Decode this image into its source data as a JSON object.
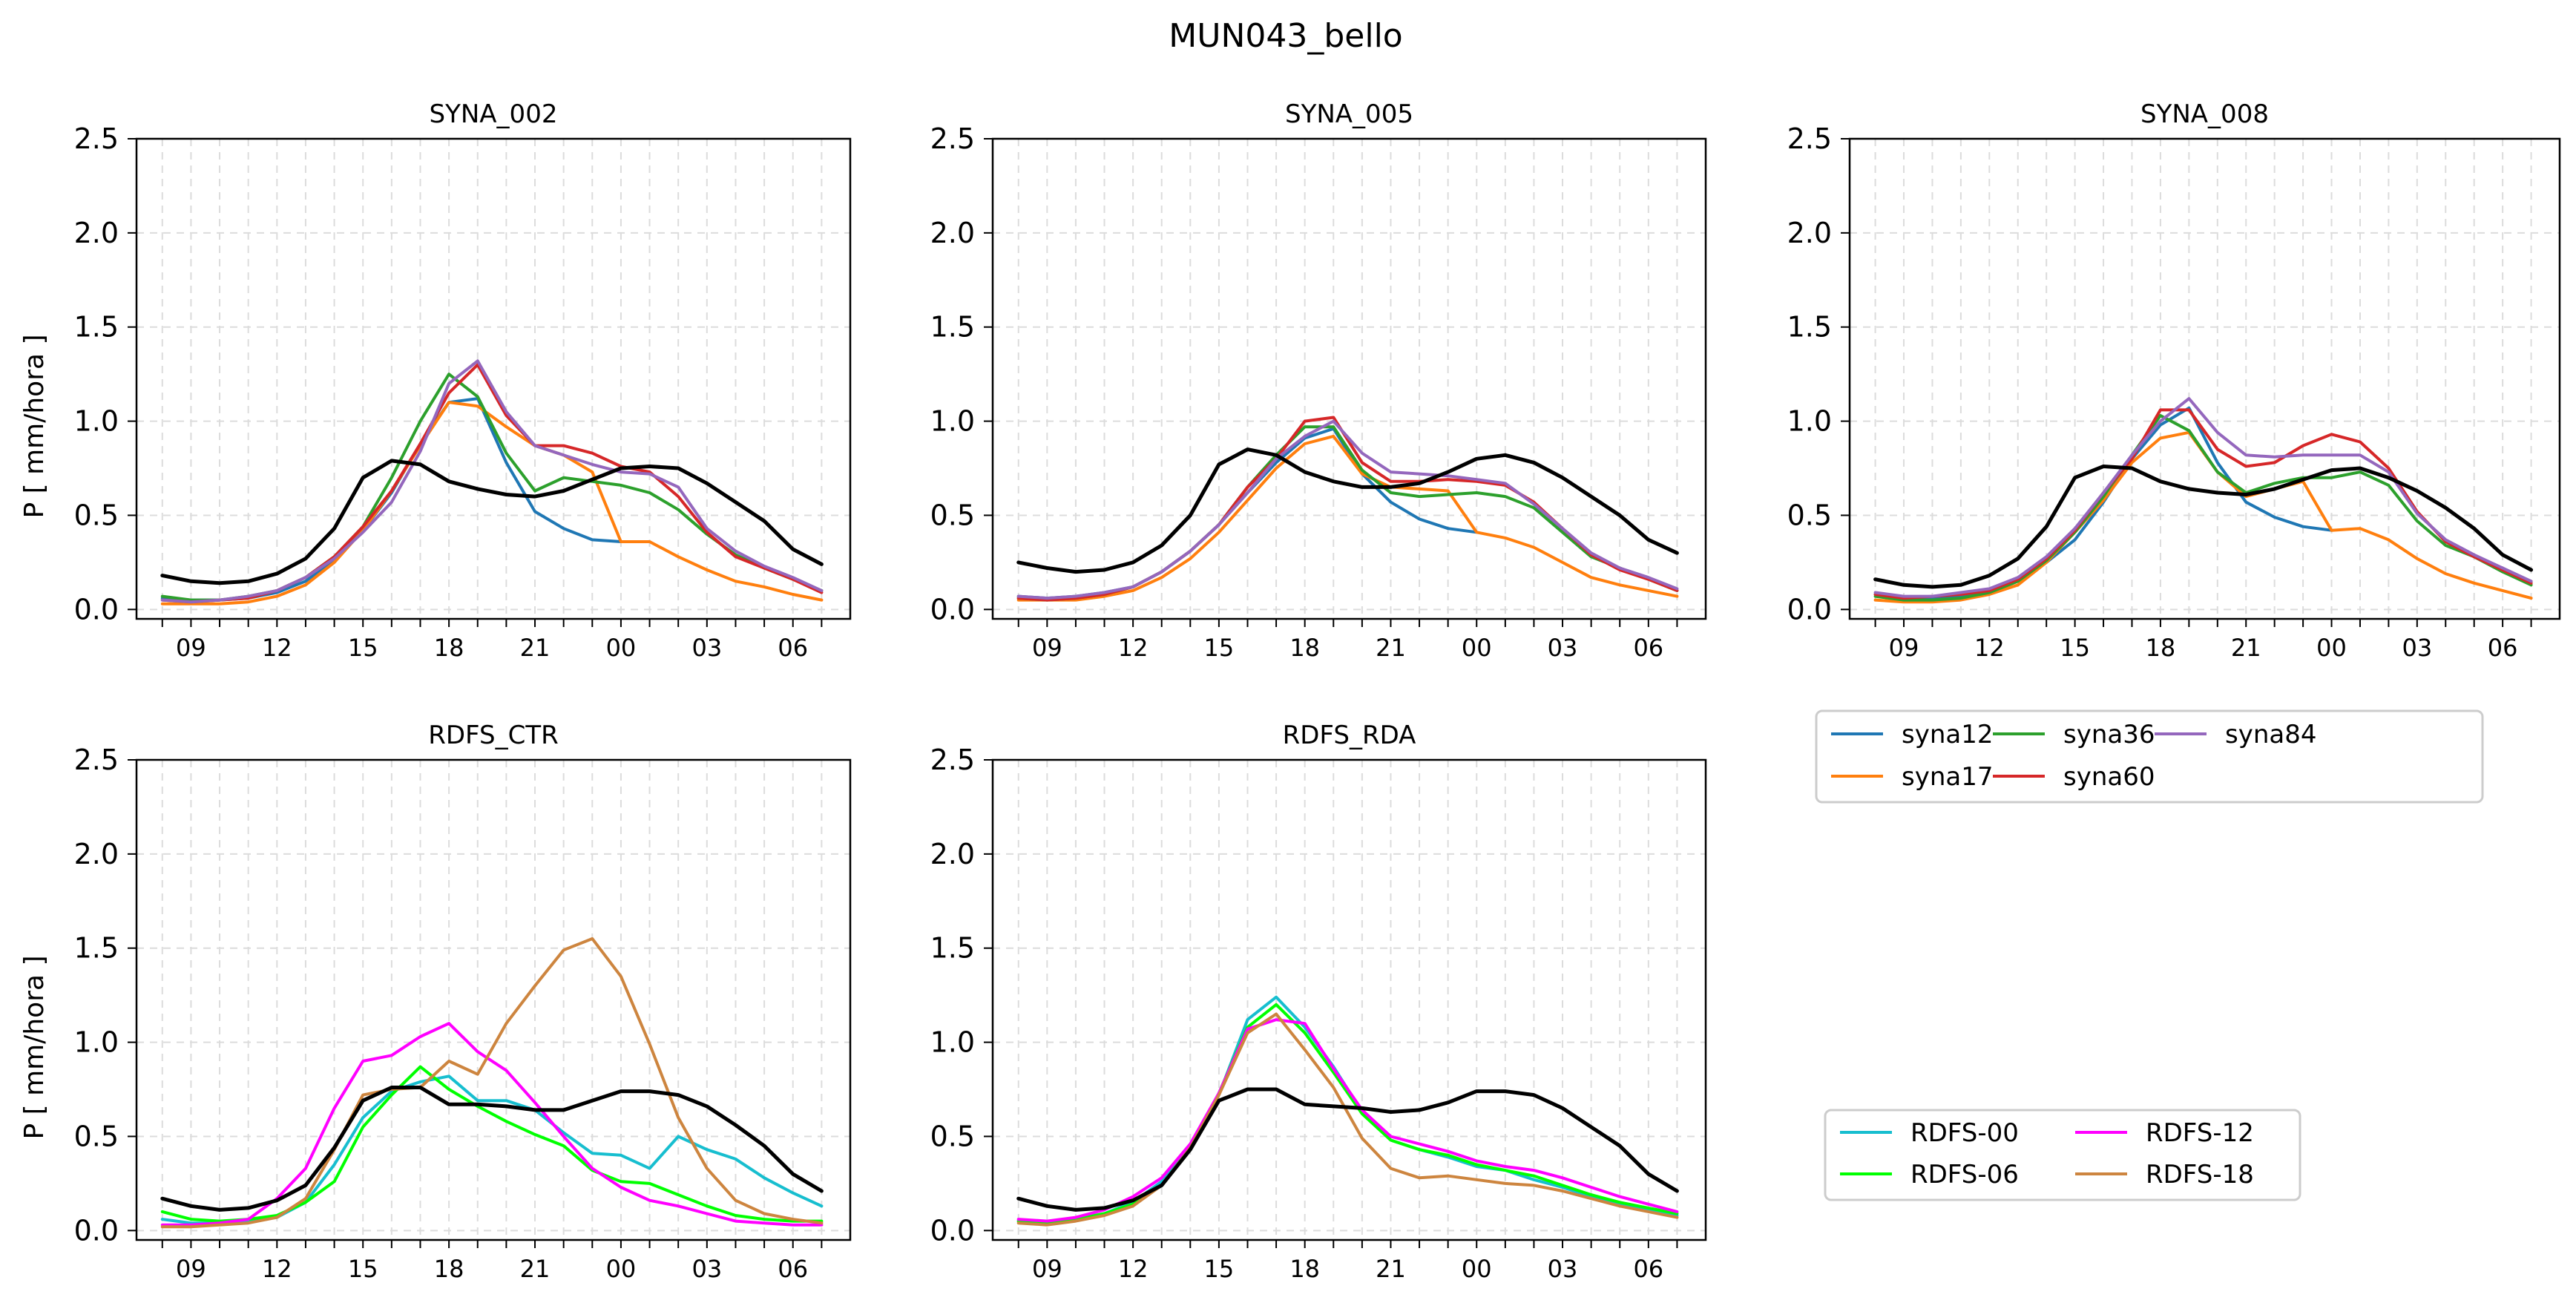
{
  "figure": {
    "title": "MUN043_bello"
  },
  "colors": {
    "observed": "#000000",
    "syna12": "#1f77b4",
    "syna17": "#ff7f0e",
    "syna36": "#2ca02c",
    "syna60": "#d62728",
    "syna84": "#9467bd",
    "RDFS-00": "#17becf",
    "RDFS-06": "#00ff00",
    "RDFS-12": "#ff00ff",
    "RDFS-18": "#cd853f"
  },
  "legends": {
    "syna": {
      "entries": [
        "syna12",
        "syna36",
        "syna84",
        "syna17",
        "syna60"
      ]
    },
    "rdfs": {
      "entries": [
        "RDFS-00",
        "RDFS-12",
        "RDFS-06",
        "RDFS-18"
      ]
    }
  },
  "chart_data": [
    {
      "type": "line",
      "title": "SYNA_002",
      "ylabel": "P [ mm/hora ]",
      "xlabel": "",
      "ylim": [
        -0.05,
        2.5
      ],
      "yticks": [
        "0.0",
        "0.5",
        "1.0",
        "1.5",
        "2.0",
        "2.5"
      ],
      "xticks": [
        "09",
        "12",
        "15",
        "18",
        "21",
        "00",
        "03",
        "06"
      ],
      "grid": true,
      "x": [
        8,
        9,
        10,
        11,
        12,
        13,
        14,
        15,
        16,
        17,
        18,
        19,
        20,
        21,
        22,
        23,
        24,
        25,
        26,
        27,
        28,
        29,
        30,
        31
      ],
      "series": [
        {
          "name": "syna12",
          "values": [
            0.06,
            0.05,
            0.05,
            0.06,
            0.09,
            0.15,
            0.26,
            0.42,
            0.62,
            0.88,
            1.1,
            1.12,
            0.78,
            0.52,
            0.43,
            0.37,
            0.36,
            null,
            null,
            null,
            null,
            null,
            null,
            null
          ]
        },
        {
          "name": "syna17",
          "values": [
            0.03,
            0.03,
            0.03,
            0.04,
            0.07,
            0.13,
            0.25,
            0.42,
            0.63,
            0.87,
            1.1,
            1.08,
            0.97,
            0.87,
            0.82,
            0.73,
            0.36,
            0.36,
            0.28,
            0.21,
            0.15,
            0.12,
            0.08,
            0.05
          ]
        },
        {
          "name": "syna36",
          "values": [
            0.07,
            0.05,
            0.05,
            0.07,
            0.1,
            0.17,
            0.28,
            0.44,
            0.7,
            1.0,
            1.25,
            1.13,
            0.83,
            0.63,
            0.7,
            0.68,
            0.66,
            0.62,
            0.53,
            0.4,
            0.29,
            0.22,
            0.16,
            0.1
          ]
        },
        {
          "name": "syna60",
          "values": [
            0.05,
            0.04,
            0.05,
            0.06,
            0.1,
            0.17,
            0.28,
            0.44,
            0.63,
            0.88,
            1.15,
            1.3,
            1.03,
            0.87,
            0.87,
            0.83,
            0.76,
            0.73,
            0.6,
            0.41,
            0.28,
            0.22,
            0.16,
            0.09
          ]
        },
        {
          "name": "syna84",
          "values": [
            0.05,
            0.04,
            0.05,
            0.07,
            0.1,
            0.17,
            0.27,
            0.41,
            0.57,
            0.84,
            1.2,
            1.32,
            1.05,
            0.87,
            0.82,
            0.77,
            0.73,
            0.72,
            0.65,
            0.43,
            0.31,
            0.23,
            0.17,
            0.1
          ]
        },
        {
          "name": "observed",
          "values": [
            0.18,
            0.15,
            0.14,
            0.15,
            0.19,
            0.27,
            0.43,
            0.7,
            0.79,
            0.77,
            0.68,
            0.64,
            0.61,
            0.6,
            0.63,
            0.69,
            0.75,
            0.76,
            0.75,
            0.67,
            0.57,
            0.47,
            0.32,
            0.24
          ]
        }
      ]
    },
    {
      "type": "line",
      "title": "SYNA_005",
      "ylabel": "",
      "xlabel": "",
      "ylim": [
        -0.05,
        2.5
      ],
      "yticks": [
        "0.0",
        "0.5",
        "1.0",
        "1.5",
        "2.0",
        "2.5"
      ],
      "xticks": [
        "09",
        "12",
        "15",
        "18",
        "21",
        "00",
        "03",
        "06"
      ],
      "grid": true,
      "x": [
        8,
        9,
        10,
        11,
        12,
        13,
        14,
        15,
        16,
        17,
        18,
        19,
        20,
        21,
        22,
        23,
        24,
        25,
        26,
        27,
        28,
        29,
        30,
        31
      ],
      "series": [
        {
          "name": "syna12",
          "values": [
            0.07,
            0.06,
            0.07,
            0.09,
            0.12,
            0.2,
            0.31,
            0.45,
            0.62,
            0.78,
            0.91,
            0.96,
            0.72,
            0.57,
            0.48,
            0.43,
            0.41,
            null,
            null,
            null,
            null,
            null,
            null,
            null
          ]
        },
        {
          "name": "syna17",
          "values": [
            0.05,
            0.05,
            0.05,
            0.07,
            0.1,
            0.17,
            0.27,
            0.41,
            0.58,
            0.75,
            0.88,
            0.92,
            0.72,
            0.65,
            0.64,
            0.63,
            0.41,
            0.38,
            0.33,
            0.25,
            0.17,
            0.13,
            0.1,
            0.07
          ]
        },
        {
          "name": "syna36",
          "values": [
            0.06,
            0.05,
            0.06,
            0.08,
            0.12,
            0.2,
            0.31,
            0.45,
            0.65,
            0.82,
            0.97,
            0.97,
            0.74,
            0.62,
            0.6,
            0.61,
            0.62,
            0.6,
            0.54,
            0.41,
            0.28,
            0.22,
            0.16,
            0.1
          ]
        },
        {
          "name": "syna60",
          "values": [
            0.06,
            0.05,
            0.06,
            0.08,
            0.12,
            0.2,
            0.31,
            0.45,
            0.65,
            0.8,
            1.0,
            1.02,
            0.78,
            0.68,
            0.68,
            0.69,
            0.68,
            0.66,
            0.57,
            0.43,
            0.29,
            0.21,
            0.16,
            0.1
          ]
        },
        {
          "name": "syna84",
          "values": [
            0.07,
            0.06,
            0.07,
            0.09,
            0.12,
            0.2,
            0.31,
            0.45,
            0.62,
            0.8,
            0.92,
            1.0,
            0.83,
            0.73,
            0.72,
            0.71,
            0.69,
            0.67,
            0.56,
            0.43,
            0.3,
            0.22,
            0.17,
            0.11
          ]
        },
        {
          "name": "observed",
          "values": [
            0.25,
            0.22,
            0.2,
            0.21,
            0.25,
            0.34,
            0.5,
            0.77,
            0.85,
            0.82,
            0.73,
            0.68,
            0.65,
            0.65,
            0.67,
            0.73,
            0.8,
            0.82,
            0.78,
            0.7,
            0.6,
            0.5,
            0.37,
            0.3
          ]
        }
      ]
    },
    {
      "type": "line",
      "title": "SYNA_008",
      "ylabel": "",
      "xlabel": "",
      "ylim": [
        -0.05,
        2.5
      ],
      "yticks": [
        "0.0",
        "0.5",
        "1.0",
        "1.5",
        "2.0",
        "2.5"
      ],
      "xticks": [
        "09",
        "12",
        "15",
        "18",
        "21",
        "00",
        "03",
        "06"
      ],
      "grid": true,
      "x": [
        8,
        9,
        10,
        11,
        12,
        13,
        14,
        15,
        16,
        17,
        18,
        19,
        20,
        21,
        22,
        23,
        24,
        25,
        26,
        27,
        28,
        29,
        30,
        31
      ],
      "series": [
        {
          "name": "syna12",
          "values": [
            0.08,
            0.06,
            0.06,
            0.07,
            0.09,
            0.15,
            0.25,
            0.37,
            0.57,
            0.8,
            0.98,
            1.07,
            0.78,
            0.57,
            0.49,
            0.44,
            0.42,
            null,
            null,
            null,
            null,
            null,
            null,
            null
          ]
        },
        {
          "name": "syna17",
          "values": [
            0.05,
            0.04,
            0.04,
            0.05,
            0.08,
            0.13,
            0.25,
            0.41,
            0.58,
            0.78,
            0.91,
            0.94,
            0.73,
            0.6,
            0.64,
            0.68,
            0.42,
            0.43,
            0.37,
            0.27,
            0.19,
            0.14,
            0.1,
            0.06
          ]
        },
        {
          "name": "syna36",
          "values": [
            0.07,
            0.05,
            0.05,
            0.06,
            0.09,
            0.15,
            0.26,
            0.41,
            0.6,
            0.82,
            1.03,
            0.95,
            0.73,
            0.62,
            0.67,
            0.7,
            0.7,
            0.73,
            0.66,
            0.47,
            0.34,
            0.28,
            0.2,
            0.13
          ]
        },
        {
          "name": "syna60",
          "values": [
            0.08,
            0.06,
            0.07,
            0.08,
            0.1,
            0.16,
            0.27,
            0.42,
            0.62,
            0.8,
            1.06,
            1.06,
            0.85,
            0.76,
            0.78,
            0.87,
            0.93,
            0.89,
            0.75,
            0.52,
            0.36,
            0.28,
            0.21,
            0.14
          ]
        },
        {
          "name": "syna84",
          "values": [
            0.09,
            0.07,
            0.07,
            0.09,
            0.11,
            0.17,
            0.28,
            0.43,
            0.62,
            0.82,
            1.0,
            1.12,
            0.94,
            0.82,
            0.81,
            0.82,
            0.82,
            0.82,
            0.73,
            0.51,
            0.37,
            0.29,
            0.22,
            0.15
          ]
        },
        {
          "name": "observed",
          "values": [
            0.16,
            0.13,
            0.12,
            0.13,
            0.18,
            0.27,
            0.44,
            0.7,
            0.76,
            0.75,
            0.68,
            0.64,
            0.62,
            0.61,
            0.64,
            0.69,
            0.74,
            0.75,
            0.7,
            0.63,
            0.54,
            0.43,
            0.29,
            0.21
          ]
        }
      ]
    },
    {
      "type": "line",
      "title": "RDFS_CTR",
      "ylabel": "P [ mm/hora ]",
      "xlabel": "",
      "ylim": [
        -0.05,
        2.5
      ],
      "yticks": [
        "0.0",
        "0.5",
        "1.0",
        "1.5",
        "2.0",
        "2.5"
      ],
      "xticks": [
        "09",
        "12",
        "15",
        "18",
        "21",
        "00",
        "03",
        "06"
      ],
      "grid": true,
      "x": [
        8,
        9,
        10,
        11,
        12,
        13,
        14,
        15,
        16,
        17,
        18,
        19,
        20,
        21,
        22,
        23,
        24,
        25,
        26,
        27,
        28,
        29,
        30,
        31
      ],
      "series": [
        {
          "name": "RDFS-00",
          "values": [
            0.06,
            0.04,
            0.04,
            0.05,
            0.07,
            0.15,
            0.35,
            0.6,
            0.74,
            0.79,
            0.82,
            0.69,
            0.69,
            0.64,
            0.52,
            0.41,
            0.4,
            0.33,
            0.5,
            0.43,
            0.38,
            0.28,
            0.2,
            0.13
          ]
        },
        {
          "name": "RDFS-06",
          "values": [
            0.1,
            0.06,
            0.05,
            0.06,
            0.08,
            0.15,
            0.26,
            0.55,
            0.72,
            0.87,
            0.75,
            0.66,
            0.58,
            0.51,
            0.45,
            0.32,
            0.26,
            0.25,
            0.19,
            0.13,
            0.08,
            0.06,
            0.05,
            0.05
          ]
        },
        {
          "name": "RDFS-12",
          "values": [
            0.03,
            0.03,
            0.04,
            0.06,
            0.17,
            0.33,
            0.65,
            0.9,
            0.93,
            1.03,
            1.1,
            0.95,
            0.85,
            0.68,
            0.5,
            0.33,
            0.23,
            0.16,
            0.13,
            0.09,
            0.05,
            0.04,
            0.03,
            0.03
          ]
        },
        {
          "name": "RDFS-18",
          "values": [
            0.02,
            0.02,
            0.03,
            0.04,
            0.07,
            0.17,
            0.43,
            0.72,
            0.75,
            0.76,
            0.9,
            0.83,
            1.1,
            1.3,
            1.49,
            1.55,
            1.35,
            0.99,
            0.6,
            0.33,
            0.16,
            0.09,
            0.06,
            0.04
          ]
        },
        {
          "name": "observed",
          "values": [
            0.17,
            0.13,
            0.11,
            0.12,
            0.16,
            0.24,
            0.44,
            0.69,
            0.76,
            0.76,
            0.67,
            0.67,
            0.66,
            0.64,
            0.64,
            0.69,
            0.74,
            0.74,
            0.72,
            0.66,
            0.56,
            0.45,
            0.3,
            0.21
          ]
        }
      ]
    },
    {
      "type": "line",
      "title": "RDFS_RDA",
      "ylabel": "",
      "xlabel": "",
      "ylim": [
        -0.05,
        2.5
      ],
      "yticks": [
        "0.0",
        "0.5",
        "1.0",
        "1.5",
        "2.0",
        "2.5"
      ],
      "xticks": [
        "09",
        "12",
        "15",
        "18",
        "21",
        "00",
        "03",
        "06"
      ],
      "grid": true,
      "x": [
        8,
        9,
        10,
        11,
        12,
        13,
        14,
        15,
        16,
        17,
        18,
        19,
        20,
        21,
        22,
        23,
        24,
        25,
        26,
        27,
        28,
        29,
        30,
        31
      ],
      "series": [
        {
          "name": "RDFS-00",
          "values": [
            0.05,
            0.04,
            0.06,
            0.09,
            0.15,
            0.26,
            0.45,
            0.72,
            1.12,
            1.24,
            1.08,
            0.87,
            0.63,
            0.48,
            0.43,
            0.39,
            0.34,
            0.32,
            0.27,
            0.23,
            0.18,
            0.14,
            0.11,
            0.08
          ]
        },
        {
          "name": "RDFS-06",
          "values": [
            0.05,
            0.04,
            0.06,
            0.09,
            0.14,
            0.24,
            0.44,
            0.73,
            1.08,
            1.2,
            1.05,
            0.84,
            0.62,
            0.48,
            0.43,
            0.4,
            0.35,
            0.32,
            0.29,
            0.24,
            0.19,
            0.15,
            0.12,
            0.09
          ]
        },
        {
          "name": "RDFS-12",
          "values": [
            0.06,
            0.05,
            0.07,
            0.11,
            0.18,
            0.28,
            0.46,
            0.73,
            1.07,
            1.12,
            1.1,
            0.86,
            0.64,
            0.5,
            0.46,
            0.42,
            0.37,
            0.34,
            0.32,
            0.28,
            0.23,
            0.18,
            0.14,
            0.1
          ]
        },
        {
          "name": "RDFS-18",
          "values": [
            0.04,
            0.03,
            0.05,
            0.08,
            0.13,
            0.24,
            0.44,
            0.72,
            1.05,
            1.15,
            0.96,
            0.76,
            0.49,
            0.33,
            0.28,
            0.29,
            0.27,
            0.25,
            0.24,
            0.21,
            0.17,
            0.13,
            0.1,
            0.07
          ]
        },
        {
          "name": "observed",
          "values": [
            0.17,
            0.13,
            0.11,
            0.12,
            0.16,
            0.24,
            0.43,
            0.69,
            0.75,
            0.75,
            0.67,
            0.66,
            0.65,
            0.63,
            0.64,
            0.68,
            0.74,
            0.74,
            0.72,
            0.65,
            0.55,
            0.45,
            0.3,
            0.21
          ]
        }
      ]
    }
  ]
}
